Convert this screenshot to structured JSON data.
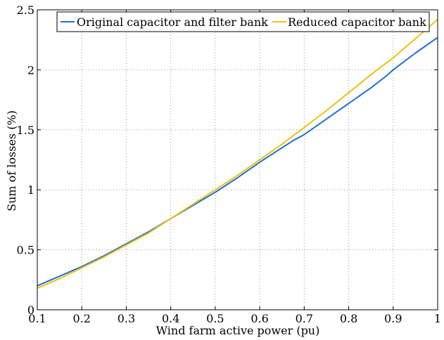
{
  "chart_data": {
    "type": "line",
    "xlabel": "Wind farm active power (pu)",
    "ylabel": "Sum of losses (%)",
    "xlim": [
      0.1,
      1.0
    ],
    "ylim": [
      0,
      2.5
    ],
    "grid": true,
    "legend_position": "top",
    "x_ticks": [
      "0.1",
      "0.2",
      "0.3",
      "0.4",
      "0.5",
      "0.6",
      "0.7",
      "0.8",
      "0.9",
      "1"
    ],
    "y_ticks": [
      "0",
      "0.5",
      "1",
      "1.5",
      "2",
      "2.5"
    ],
    "x_tick_values": [
      0.1,
      0.2,
      0.3,
      0.4,
      0.5,
      0.6,
      0.7,
      0.8,
      0.9,
      1.0
    ],
    "y_tick_values": [
      0,
      0.5,
      1.0,
      1.5,
      2.0,
      2.5
    ],
    "series": [
      {
        "name": "Original capacitor and filter bank",
        "color": "#1f6fd6",
        "x": [
          0.1,
          0.15,
          0.2,
          0.25,
          0.3,
          0.35,
          0.4,
          0.45,
          0.5,
          0.55,
          0.6,
          0.65,
          0.675,
          0.7,
          0.75,
          0.8,
          0.85,
          0.885,
          0.9,
          0.95,
          1.0
        ],
        "y": [
          0.2,
          0.28,
          0.36,
          0.45,
          0.55,
          0.65,
          0.76,
          0.87,
          0.98,
          1.1,
          1.23,
          1.35,
          1.41,
          1.46,
          1.59,
          1.72,
          1.85,
          1.95,
          2.0,
          2.14,
          2.27
        ]
      },
      {
        "name": "Reduced capacitor bank",
        "color": "#f0c010",
        "x": [
          0.1,
          0.15,
          0.2,
          0.25,
          0.3,
          0.35,
          0.4,
          0.45,
          0.5,
          0.55,
          0.6,
          0.65,
          0.7,
          0.75,
          0.8,
          0.85,
          0.9,
          0.95,
          1.0
        ],
        "y": [
          0.18,
          0.26,
          0.35,
          0.44,
          0.54,
          0.64,
          0.76,
          0.88,
          1.0,
          1.12,
          1.25,
          1.38,
          1.52,
          1.66,
          1.81,
          1.96,
          2.1,
          2.26,
          2.42
        ]
      }
    ]
  }
}
